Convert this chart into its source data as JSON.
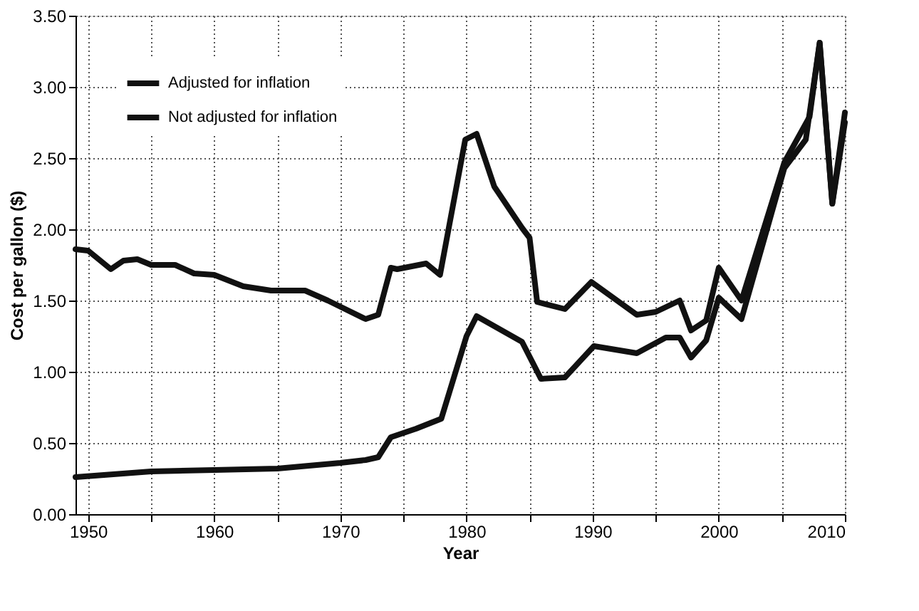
{
  "chart_data": {
    "type": "line",
    "xlabel": "Year",
    "ylabel": "Cost per gallon ($)",
    "xlim": [
      1949,
      2010
    ],
    "ylim": [
      0,
      3.5
    ],
    "xticks": [
      1950,
      {
        "value": 1955,
        "label": null
      },
      1960,
      {
        "value": 1965,
        "label": null
      },
      1970,
      {
        "value": 1975,
        "label": null
      },
      1980,
      {
        "value": 1985,
        "label": null
      },
      1990,
      {
        "value": 1995,
        "label": null
      },
      2000,
      {
        "value": 2005,
        "label": null
      },
      2010
    ],
    "yticks": [
      {
        "value": 0,
        "label": "0.00"
      },
      {
        "value": 0.5,
        "label": "0.50"
      },
      {
        "value": 1,
        "label": "1.00"
      },
      {
        "value": 1.5,
        "label": "1.50"
      },
      {
        "value": 2,
        "label": "2.00"
      },
      {
        "value": 2.5,
        "label": "2.50"
      },
      {
        "value": 3,
        "label": "3.00"
      },
      {
        "value": 3.5,
        "label": "3.50"
      }
    ],
    "grid": true,
    "legend": "top left",
    "marker": "none",
    "line_style": "solid",
    "series": [
      {
        "name": "Adjusted for inflation",
        "color": "#111111",
        "x": [
          1949,
          1950,
          1951.8,
          1952.8,
          1953.9,
          1955,
          1956.9,
          1958.4,
          1960,
          1962.3,
          1964.5,
          1967.2,
          1969,
          1972,
          1973,
          1974,
          1974.5,
          1976.8,
          1977.9,
          1979.9,
          1980.8,
          1982.2,
          1984.4,
          1985,
          1985.6,
          1987.8,
          1989.9,
          1993.5,
          1995,
          1996.9,
          1997.8,
          1999,
          2000,
          2001.8,
          2005.2,
          2007.2,
          2008,
          2009,
          2010
        ],
        "values": [
          1.86,
          1.85,
          1.72,
          1.78,
          1.79,
          1.75,
          1.75,
          1.69,
          1.68,
          1.6,
          1.57,
          1.57,
          1.5,
          1.37,
          1.4,
          1.73,
          1.72,
          1.76,
          1.68,
          2.63,
          2.67,
          2.3,
          2.01,
          1.94,
          1.49,
          1.44,
          1.63,
          1.4,
          1.42,
          1.5,
          1.29,
          1.36,
          1.73,
          1.5,
          2.47,
          2.79,
          3.31,
          2.18,
          2.75
        ]
      },
      {
        "name": "Not adjusted for inflation",
        "color": "#111111",
        "x": [
          1949,
          1955,
          1960,
          1965,
          1970,
          1972,
          1973,
          1974,
          1975,
          1976,
          1978,
          1980,
          1980.8,
          1984.4,
          1985.9,
          1987.8,
          1990.1,
          1993.5,
          1995.8,
          1996.9,
          1997.8,
          1999,
          2000,
          2001.8,
          2005.2,
          2006.9,
          2008,
          2009,
          2010
        ],
        "values": [
          0.26,
          0.3,
          0.31,
          0.32,
          0.36,
          0.38,
          0.4,
          0.54,
          0.57,
          0.6,
          0.67,
          1.25,
          1.39,
          1.21,
          0.95,
          0.96,
          1.18,
          1.13,
          1.24,
          1.24,
          1.1,
          1.22,
          1.52,
          1.37,
          2.43,
          2.63,
          3.31,
          2.18,
          2.82
        ]
      }
    ]
  }
}
